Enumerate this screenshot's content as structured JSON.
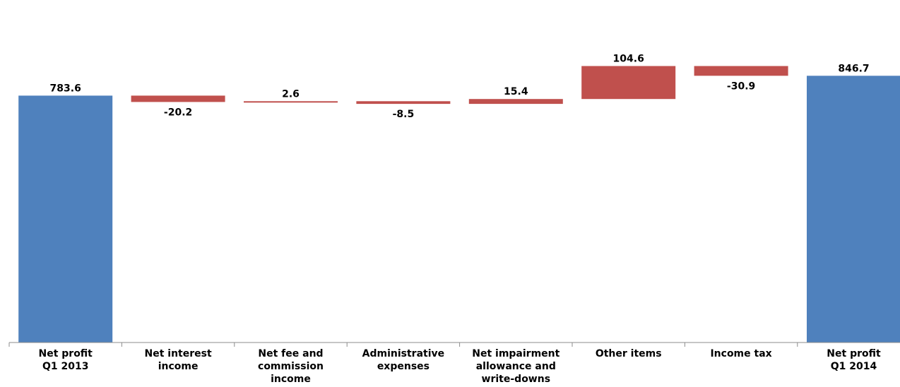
{
  "chart_data": {
    "type": "waterfall",
    "title": "",
    "xlabel": "",
    "ylabel": "",
    "categories": [
      [
        "Net profit",
        "Q1 2013"
      ],
      [
        "Net interest",
        "income"
      ],
      [
        "Net fee and",
        "commission",
        "income"
      ],
      [
        "Administrative",
        "expenses"
      ],
      [
        "Net impairment",
        "allowance and",
        "write-downs"
      ],
      [
        "Other items"
      ],
      [
        "Income tax"
      ],
      [
        "Net profit",
        "Q1 2014"
      ]
    ],
    "values": [
      783.6,
      -20.2,
      2.6,
      -8.5,
      15.4,
      104.6,
      -30.9,
      846.7
    ],
    "labels": [
      "783.6",
      "-20.2",
      "2.6",
      "-8.5",
      "15.4",
      "104.6",
      "-30.9",
      "846.7"
    ],
    "kinds": [
      "total",
      "delta",
      "delta",
      "delta",
      "delta",
      "delta",
      "delta",
      "total"
    ],
    "grid": false,
    "legend": "none",
    "colors": {
      "total": "#4f81bd",
      "delta": "#c0504d",
      "axis": "#8c8c8c"
    }
  }
}
